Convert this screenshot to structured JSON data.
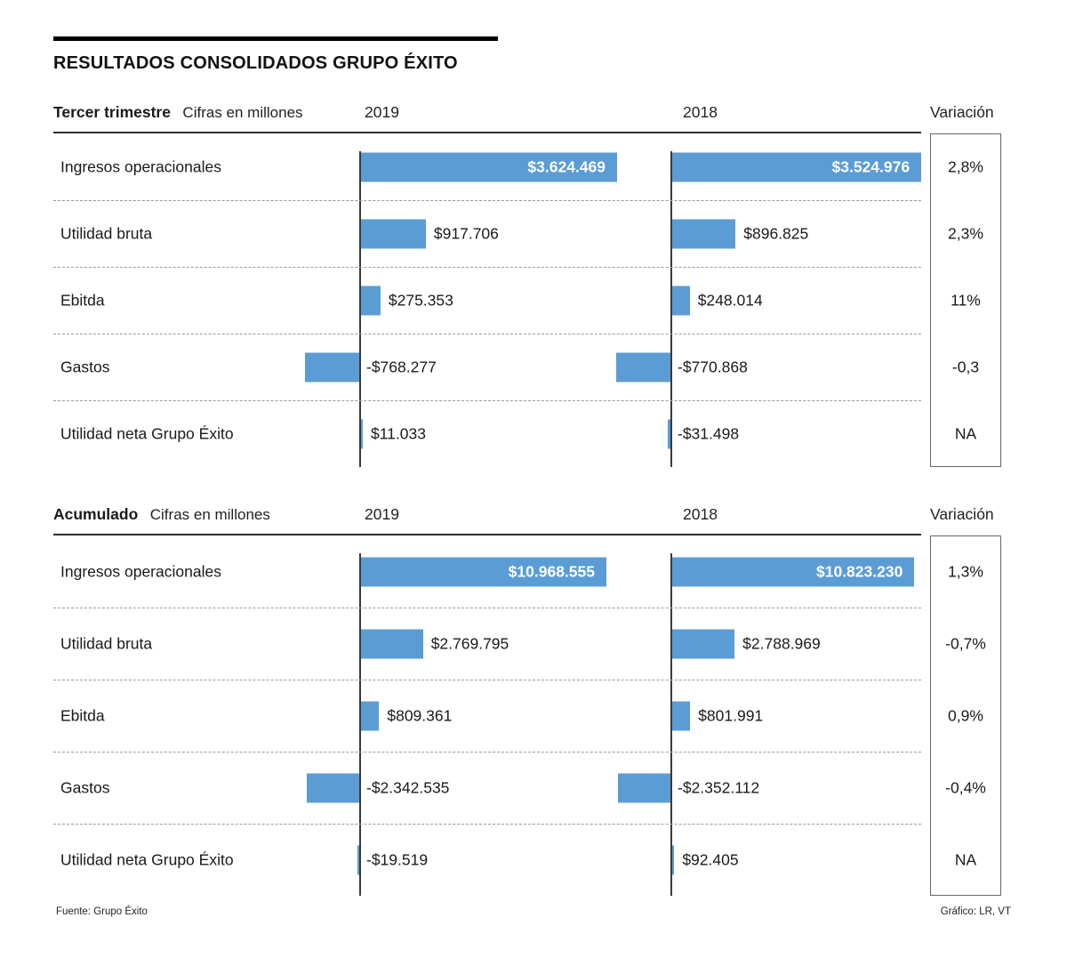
{
  "title": "RESULTADOS CONSOLIDADOS GRUPO ÉXITO",
  "footer": {
    "source": "Fuente: Grupo Éxito",
    "credit": "Gráfico: LR, VT"
  },
  "colors": {
    "bar": "#5b9cd4",
    "rule": "#000000"
  },
  "chart_data": [
    {
      "type": "bar",
      "orientation": "horizontal",
      "title": "Tercer trimestre",
      "subtitle": "Cifras en millones",
      "variation_label": "Variación",
      "categories": [
        "Ingresos operacionales",
        "Utilidad bruta",
        "Ebitda",
        "Gastos",
        "Utilidad neta Grupo Éxito"
      ],
      "series": [
        {
          "name": "2019",
          "values": [
            3624469,
            917706,
            275353,
            -768277,
            11033
          ],
          "labels": [
            "$3.624.469",
            "$917.706",
            "$275.353",
            "-$768.277",
            "$11.033"
          ]
        },
        {
          "name": "2018",
          "values": [
            3524976,
            896825,
            248014,
            -770868,
            -31498
          ],
          "labels": [
            "$3.524.976",
            "$896.825",
            "$248.014",
            "-$770.868",
            "-$31.498"
          ]
        }
      ],
      "variation": [
        "2,8%",
        "2,3%",
        "11%",
        "-0,3",
        "NA"
      ],
      "label_inside_rows": [
        0
      ],
      "legend_position": "top",
      "grid": "dashed-row-separators"
    },
    {
      "type": "bar",
      "orientation": "horizontal",
      "title": "Acumulado",
      "subtitle": "Cifras en millones",
      "variation_label": "Variación",
      "categories": [
        "Ingresos operacionales",
        "Utilidad bruta",
        "Ebitda",
        "Gastos",
        "Utilidad neta Grupo Éxito"
      ],
      "series": [
        {
          "name": "2019",
          "values": [
            10968555,
            2769795,
            809361,
            -2342535,
            -19519
          ],
          "labels": [
            "$10.968.555",
            "$2.769.795",
            "$809.361",
            "-$2.342.535",
            "-$19.519"
          ]
        },
        {
          "name": "2018",
          "values": [
            10823230,
            2788969,
            801991,
            -2352112,
            92405
          ],
          "labels": [
            "$10.823.230",
            "$2.788.969",
            "$801.991",
            "-$2.352.112",
            "$92.405"
          ]
        }
      ],
      "variation": [
        "1,3%",
        "-0,7%",
        "0,9%",
        "-0,4%",
        "NA"
      ],
      "label_inside_rows": [
        0
      ],
      "legend_position": "top",
      "grid": "dashed-row-separators"
    }
  ]
}
